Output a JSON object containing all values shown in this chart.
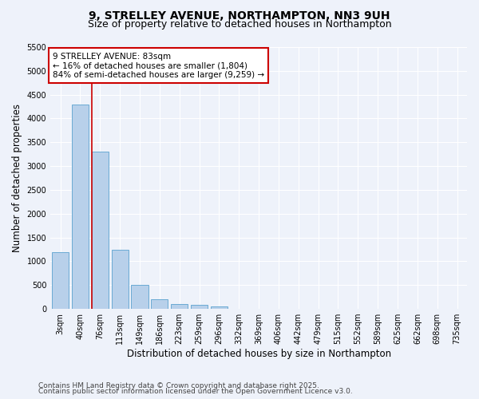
{
  "title_line1": "9, STRELLEY AVENUE, NORTHAMPTON, NN3 9UH",
  "title_line2": "Size of property relative to detached houses in Northampton",
  "xlabel": "Distribution of detached houses by size in Northampton",
  "ylabel": "Number of detached properties",
  "bar_categories": [
    "3sqm",
    "40sqm",
    "76sqm",
    "113sqm",
    "149sqm",
    "186sqm",
    "223sqm",
    "259sqm",
    "296sqm",
    "332sqm",
    "369sqm",
    "406sqm",
    "442sqm",
    "479sqm",
    "515sqm",
    "552sqm",
    "589sqm",
    "625sqm",
    "662sqm",
    "698sqm",
    "735sqm"
  ],
  "bar_values": [
    1200,
    4300,
    3300,
    1250,
    500,
    200,
    100,
    80,
    50,
    0,
    0,
    0,
    0,
    0,
    0,
    0,
    0,
    0,
    0,
    0,
    0
  ],
  "bar_color": "#b8d0ea",
  "bar_edge_color": "#6aaad4",
  "vline_color": "#cc0000",
  "vline_bin_index": 2,
  "annotation_text": "9 STRELLEY AVENUE: 83sqm\n← 16% of detached houses are smaller (1,804)\n84% of semi-detached houses are larger (9,259) →",
  "annotation_box_color": "#ffffff",
  "annotation_box_edge": "#cc0000",
  "ylim": [
    0,
    5500
  ],
  "yticks": [
    0,
    500,
    1000,
    1500,
    2000,
    2500,
    3000,
    3500,
    4000,
    4500,
    5000,
    5500
  ],
  "footer_line1": "Contains HM Land Registry data © Crown copyright and database right 2025.",
  "footer_line2": "Contains public sector information licensed under the Open Government Licence v3.0.",
  "bg_color": "#eef2fa",
  "grid_color": "#ffffff",
  "title_fontsize": 10,
  "subtitle_fontsize": 9,
  "tick_fontsize": 7,
  "label_fontsize": 8.5,
  "footer_fontsize": 6.5,
  "annotation_fontsize": 7.5
}
